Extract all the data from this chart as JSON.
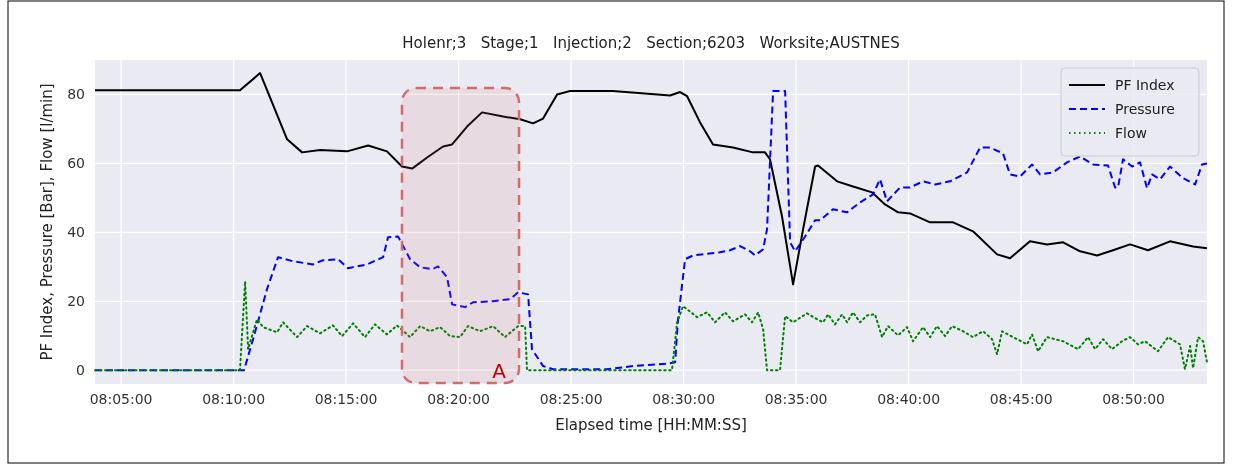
{
  "chart_data": {
    "type": "line",
    "title": "Holenr;3   Stage;1   Injection;2   Section;6203   Worksite;AUSTNES",
    "xlabel": "Elapsed time [HH:MM:SS]",
    "ylabel": "PF Index, Pressure [Bar], Flow [l/min]",
    "xlim": [
      8.064,
      8.8877
    ],
    "ylim": [
      -4,
      90
    ],
    "xticks": [
      {
        "value": 8.08333,
        "label": "08:05:00"
      },
      {
        "value": 8.16667,
        "label": "08:10:00"
      },
      {
        "value": 8.25,
        "label": "08:15:00"
      },
      {
        "value": 8.33333,
        "label": "08:20:00"
      },
      {
        "value": 8.41667,
        "label": "08:25:00"
      },
      {
        "value": 8.5,
        "label": "08:30:00"
      },
      {
        "value": 8.58333,
        "label": "08:35:00"
      },
      {
        "value": 8.66667,
        "label": "08:40:00"
      },
      {
        "value": 8.75,
        "label": "08:45:00"
      },
      {
        "value": 8.83333,
        "label": "08:50:00"
      }
    ],
    "yticks": [
      0,
      20,
      40,
      60,
      80
    ],
    "grid": true,
    "legend": "top right",
    "marker": "none",
    "bands": [
      {
        "axis": "x",
        "from": 8.2914,
        "to": 8.3781,
        "label": "A",
        "color": "#d36b6b"
      }
    ],
    "series": [
      {
        "name": "PF Index",
        "color": "#000000",
        "line_style": "solid",
        "x": [
          8.064,
          8.1714,
          8.1863,
          8.2063,
          8.2174,
          8.2307,
          8.2507,
          8.2663,
          8.2803,
          8.2914,
          8.2989,
          8.31,
          8.3218,
          8.3285,
          8.3396,
          8.3507,
          8.3663,
          8.3789,
          8.3885,
          8.3959,
          8.4063,
          8.4159,
          8.4477,
          8.49,
          8.4974,
          8.5026,
          8.5122,
          8.5218,
          8.5366,
          8.5514,
          8.5603,
          8.564,
          8.5729,
          8.5811,
          8.5885,
          8.5974,
          8.5996,
          8.6137,
          8.6255,
          8.6396,
          8.6492,
          8.6589,
          8.6677,
          8.6826,
          8.6996,
          8.7144,
          8.7322,
          8.7418,
          8.7566,
          8.7692,
          8.7811,
          8.7937,
          8.8063,
          8.8181,
          8.8307,
          8.844,
          8.8603,
          8.8774,
          8.8877
        ],
        "values": [
          81.2,
          81.2,
          86.2,
          67,
          63.2,
          63.9,
          63.5,
          65.2,
          63.5,
          59.1,
          58.5,
          61.7,
          64.9,
          65.5,
          70.7,
          74.8,
          73.6,
          72.8,
          71.6,
          73,
          80,
          81,
          81,
          79.7,
          80.7,
          79.5,
          71.9,
          65.5,
          64.6,
          63.2,
          63.2,
          61.2,
          44.6,
          24.9,
          40.9,
          59.1,
          59.4,
          54.8,
          53.3,
          51.6,
          48.1,
          45.8,
          45.5,
          42.9,
          42.9,
          40.3,
          33.6,
          32.5,
          37.4,
          36.5,
          37.1,
          34.5,
          33.3,
          34.8,
          36.5,
          34.8,
          37.4,
          35.9,
          35.4
        ]
      },
      {
        "name": "Pressure",
        "color": "#0000ff",
        "line_style": "dashed",
        "x": [
          8.064,
          8.1744,
          8.1811,
          8.1914,
          8.1996,
          8.2107,
          8.2255,
          8.2329,
          8.244,
          8.2514,
          8.2655,
          8.2774,
          8.2811,
          8.2885,
          8.2974,
          8.3048,
          8.3137,
          8.3181,
          8.3248,
          8.3285,
          8.3381,
          8.344,
          8.3589,
          8.3714,
          8.3774,
          8.3848,
          8.3877,
          8.3959,
          8.4033,
          8.4433,
          8.4626,
          8.49,
          8.4937,
          8.4959,
          8.5011,
          8.507,
          8.527,
          8.5344,
          8.5418,
          8.5492,
          8.5529,
          8.5589,
          8.5618,
          8.5663,
          8.5752,
          8.5789,
          8.5826,
          8.59,
          8.5974,
          8.6011,
          8.6107,
          8.6211,
          8.6307,
          8.6403,
          8.6455,
          8.6507,
          8.6603,
          8.6677,
          8.6774,
          8.6863,
          8.6974,
          8.71,
          8.7196,
          8.727,
          8.7366,
          8.7418,
          8.7492,
          8.7581,
          8.764,
          8.7737,
          8.784,
          8.7937,
          8.8033,
          8.8144,
          8.8196,
          8.8218,
          8.8255,
          8.8322,
          8.8381,
          8.8433,
          8.847,
          8.8529,
          8.8603,
          8.87,
          8.8789,
          8.884,
          8.8877
        ],
        "values": [
          0,
          0,
          9,
          23.5,
          32.8,
          31.6,
          30.7,
          31.9,
          32.2,
          29.6,
          30.7,
          32.8,
          38.6,
          38.8,
          32.2,
          29.9,
          29.3,
          30.1,
          27,
          19.1,
          18.3,
          19.7,
          20,
          20.6,
          22.6,
          22,
          6.1,
          1.2,
          0.3,
          0.3,
          1.2,
          2,
          2.3,
          14.8,
          32.2,
          33.3,
          34.2,
          34.8,
          36,
          34.5,
          33.3,
          35.1,
          40.9,
          81,
          81,
          37.1,
          34.5,
          38.8,
          43.5,
          43.5,
          46.7,
          45.8,
          48.7,
          51,
          55.4,
          49,
          53,
          53,
          54.8,
          53.9,
          54.8,
          57.4,
          64.6,
          64.6,
          62.9,
          56.8,
          56.2,
          59.7,
          56.8,
          57.4,
          60.3,
          62,
          59.7,
          59.4,
          53,
          53,
          61.2,
          59.1,
          60.3,
          52.8,
          56.8,
          55.4,
          59.1,
          55.7,
          53.9,
          59.7,
          60
        ]
      },
      {
        "name": "Flow",
        "color": "#008000",
        "line_style": "dotted",
        "x": [
          8.064,
          8.1714,
          8.1752,
          8.1774,
          8.184,
          8.1885,
          8.1989,
          8.2033,
          8.2137,
          8.2211,
          8.2307,
          8.2403,
          8.247,
          8.2552,
          8.264,
          8.2714,
          8.2803,
          8.2877,
          8.2974,
          8.3048,
          8.3122,
          8.3196,
          8.327,
          8.3344,
          8.3403,
          8.3492,
          8.3589,
          8.3677,
          8.3774,
          8.3826,
          8.384,
          8.4914,
          8.4952,
          8.4996,
          8.51,
          8.5174,
          8.5233,
          8.5307,
          8.5366,
          8.5455,
          8.5507,
          8.5552,
          8.5589,
          8.5618,
          8.5714,
          8.5752,
          8.5811,
          8.5914,
          8.5989,
          8.6033,
          8.607,
          8.6122,
          8.6174,
          8.6211,
          8.6255,
          8.6307,
          8.6359,
          8.6418,
          8.647,
          8.6514,
          8.6589,
          8.6655,
          8.67,
          8.6774,
          8.6826,
          8.6877,
          8.6937,
          8.6989,
          8.707,
          8.7144,
          8.7218,
          8.7285,
          8.7322,
          8.7359,
          8.744,
          8.7544,
          8.7581,
          8.7626,
          8.7692,
          8.7811,
          8.7922,
          8.7996,
          8.8048,
          8.8107,
          8.8174,
          8.8248,
          8.8307,
          8.8366,
          8.8418,
          8.8514,
          8.8589,
          8.8677,
          8.8714,
          8.8752,
          8.8774,
          8.8811,
          8.8848,
          8.8877
        ],
        "values": [
          0,
          0,
          25.8,
          6.1,
          14.8,
          12.5,
          11,
          13.9,
          9.6,
          12.8,
          10.7,
          13,
          9.9,
          13.6,
          9.6,
          13.3,
          10.4,
          13,
          9.6,
          12.8,
          11.3,
          12.5,
          9.9,
          9.6,
          12.8,
          11.3,
          12.8,
          9.6,
          12.8,
          12.8,
          0,
          0,
          13.9,
          18.6,
          15.4,
          16.8,
          13.9,
          16.8,
          14.2,
          16.2,
          13.9,
          16.8,
          11.9,
          0,
          0,
          15.7,
          13.9,
          16.5,
          14.8,
          13.9,
          16.2,
          13.3,
          16.2,
          13.9,
          16.8,
          13.9,
          15.9,
          16.2,
          9.6,
          12.8,
          10.1,
          12.5,
          8.4,
          12.5,
          9.6,
          12.8,
          9.9,
          12.8,
          11.3,
          9.6,
          11.3,
          9,
          4.6,
          11.3,
          9.6,
          7.5,
          10.4,
          5.5,
          9.6,
          8.4,
          6.1,
          9.6,
          6.1,
          9,
          6.1,
          8.4,
          9.6,
          7.5,
          8.4,
          5.5,
          9.6,
          7.5,
          0.3,
          7,
          0.6,
          9.6,
          8.4,
          2.3
        ]
      }
    ]
  }
}
